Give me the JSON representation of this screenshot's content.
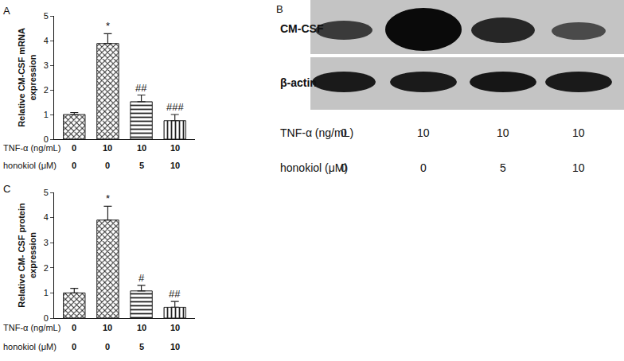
{
  "chart_data": [
    {
      "type": "bar",
      "title": "A",
      "y_label": "Relative CM-CSF mRNA expression",
      "x_rows": [
        {
          "label": "TNF-α (ng/mL)",
          "values": [
            0,
            10,
            10,
            10
          ]
        },
        {
          "label": "honokiol (μM)",
          "values": [
            0,
            0,
            5,
            10
          ]
        }
      ],
      "values": [
        1.0,
        3.88,
        1.52,
        0.75
      ],
      "errors": [
        0.08,
        0.4,
        0.27,
        0.25
      ],
      "annotations": [
        null,
        "*",
        "##",
        "###"
      ],
      "color": "#222222",
      "ylim": [
        0,
        5
      ],
      "yticks": [
        0,
        1,
        2,
        3,
        4,
        5
      ],
      "grid": false
    },
    {
      "type": "bar",
      "title": "C",
      "y_label": "Relative CM- CSF protein expression",
      "x_rows": [
        {
          "label": "TNF-α (ng/mL)",
          "values": [
            0,
            10,
            10,
            10
          ]
        },
        {
          "label": "honokiol (μM)",
          "values": [
            0,
            0,
            5,
            10
          ]
        }
      ],
      "values": [
        1.0,
        3.9,
        1.08,
        0.43
      ],
      "errors": [
        0.18,
        0.55,
        0.22,
        0.23
      ],
      "annotations": [
        null,
        "*",
        "#",
        "##"
      ],
      "color": "#222222",
      "ylim": [
        0,
        5
      ],
      "yticks": [
        0,
        1,
        2,
        3,
        4,
        5
      ],
      "grid": false
    }
  ],
  "blot": {
    "title": "B",
    "bands": [
      "CM-CSF",
      "β-actin"
    ],
    "rows": [
      {
        "label": "TNF-α (ng/mL)",
        "values": [
          0,
          10,
          10,
          10
        ]
      },
      {
        "label": "honokiol (μM)",
        "values": [
          0,
          0,
          5,
          10
        ]
      }
    ]
  }
}
